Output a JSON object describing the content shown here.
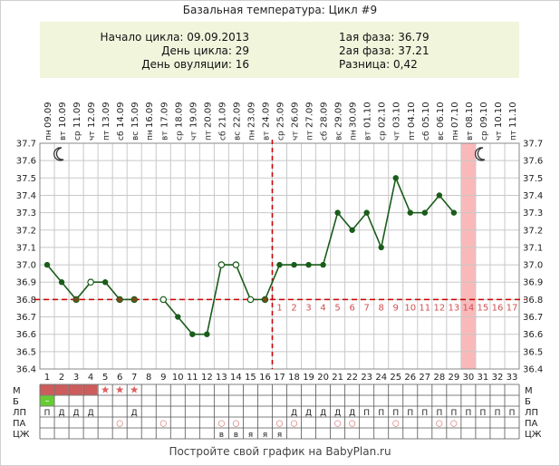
{
  "title": "Базальная температура: Цикл #9",
  "info": {
    "cycle_start": "Начало цикла: 09.09.2013",
    "cycle_day": "День цикла: 29",
    "ovulation_day": "День овуляции: 16",
    "phase1": "1ая фаза: 36.79",
    "phase2": "2ая фаза: 37.21",
    "difference": "Разница: 0,42"
  },
  "footer": "Постройте свой график на BabyPlan.ru",
  "colors": {
    "line": "#1a5c1a",
    "coverline": "#cc0000",
    "menses": "#cd5c5c",
    "highlight": "#f9b9b9",
    "box_bg": "#f0f5dc",
    "fertile": "#66cc33"
  },
  "chart_data": {
    "type": "line",
    "title": "Базальная температура: Цикл #9",
    "x": [
      1,
      2,
      3,
      4,
      5,
      6,
      7,
      8,
      9,
      10,
      11,
      12,
      13,
      14,
      15,
      16,
      17,
      18,
      19,
      20,
      21,
      22,
      23,
      24,
      25,
      26,
      27,
      28,
      29,
      30,
      31,
      32,
      33
    ],
    "dates": [
      "09.09",
      "10.09",
      "11.09",
      "12.09",
      "13.09",
      "14.09",
      "15.09",
      "16.09",
      "17.09",
      "18.09",
      "19.09",
      "20.09",
      "21.09",
      "22.09",
      "23.09",
      "24.09",
      "25.09",
      "26.09",
      "27.09",
      "28.09",
      "29.09",
      "30.09",
      "01.10",
      "02.10",
      "03.10",
      "04.10",
      "05.10",
      "06.10",
      "07.10",
      "08.10",
      "09.10",
      "10.10",
      "11.10"
    ],
    "weekdays": [
      "пн",
      "вт",
      "ср",
      "чт",
      "пт",
      "сб",
      "вс",
      "пн",
      "вт",
      "ср",
      "чт",
      "пт",
      "сб",
      "вс",
      "пн",
      "вт",
      "ср",
      "чт",
      "пт",
      "сб",
      "вс",
      "пн",
      "вт",
      "ср",
      "чт",
      "пт",
      "сб",
      "вс",
      "пн",
      "вт",
      "ср",
      "чт",
      "пт"
    ],
    "series": [
      {
        "values": [
          37.0,
          36.9,
          36.8,
          36.9,
          36.9,
          36.8,
          36.8,
          null,
          36.8,
          36.7,
          36.6,
          36.6,
          37.0,
          37.0,
          36.8,
          36.8,
          37.0,
          37.0,
          37.0,
          37.0,
          37.3,
          37.2,
          37.3,
          37.1,
          37.5,
          37.3,
          37.3,
          37.4,
          37.3,
          null,
          null,
          null,
          null
        ]
      }
    ],
    "markers": [
      "filled",
      "filled",
      "dot",
      "open",
      "filled",
      "dot",
      "dot",
      "",
      "open",
      "filled",
      "filled",
      "filled",
      "open",
      "open",
      "open",
      "dot",
      "filled",
      "filled",
      "filled",
      "filled",
      "filled",
      "filled",
      "filled",
      "filled",
      "filled",
      "filled",
      "filled",
      "filled",
      "filled",
      "",
      "",
      "",
      ""
    ],
    "coverline": 36.8,
    "ovulation_day": 16,
    "highlight_day": 30,
    "moon_days": [
      2,
      31
    ],
    "post_ovulation_labels": [
      "1",
      "2",
      "3",
      "4",
      "5",
      "6",
      "7",
      "8",
      "9",
      "10",
      "11",
      "12",
      "13",
      "14",
      "15",
      "16",
      "17"
    ],
    "ylim": [
      36.4,
      37.7
    ],
    "y_ticks": [
      "36.4",
      "36.5",
      "36.6",
      "36.7",
      "36.8",
      "36.9",
      "37.0",
      "37.1",
      "37.2",
      "37.3",
      "37.4",
      "37.5",
      "37.6",
      "37.7"
    ],
    "grid": true
  },
  "table": {
    "row_labels": [
      "М",
      "Б",
      "ЛП",
      "ПА",
      "ЦЖ"
    ],
    "menses_days": [
      1,
      2,
      3,
      4
    ],
    "star_days": [
      5,
      6,
      7
    ],
    "fertile_days": [
      1
    ],
    "fertile_mark": "–",
    "lp": [
      "П",
      "Д",
      "Д",
      "Д",
      "",
      "",
      "Д",
      "",
      "",
      "",
      "",
      "",
      "",
      "",
      "",
      "",
      "",
      "Д",
      "Д",
      "Д",
      "Д",
      "Д",
      "П",
      "П",
      "П",
      "П",
      "П",
      "П",
      "П",
      "П",
      "П",
      "П",
      "П"
    ],
    "pa_days": [
      6,
      9,
      13,
      14,
      17,
      18,
      21,
      22,
      25,
      28,
      29
    ],
    "pa_mark": "○",
    "czh": [
      "",
      "",
      "",
      "",
      "",
      "",
      "",
      "",
      "",
      "",
      "",
      "",
      "в",
      "в",
      "я",
      "я",
      "я"
    ]
  }
}
